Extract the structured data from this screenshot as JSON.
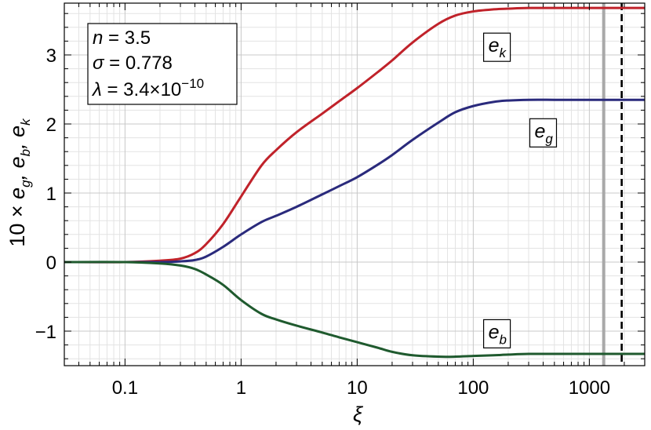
{
  "chart_data": {
    "type": "line",
    "xscale": "log",
    "xlabel": "ξ",
    "ylabel": "10 ×  e_g, e_b, e_k",
    "xlim": [
      0.03,
      3000
    ],
    "ylim": [
      -1.5,
      3.75
    ],
    "grid": true,
    "x_ticks": [
      {
        "value": 0.1,
        "label": "0.1"
      },
      {
        "value": 1,
        "label": "1"
      },
      {
        "value": 10,
        "label": "10"
      },
      {
        "value": 100,
        "label": "100"
      },
      {
        "value": 1000,
        "label": "1000"
      }
    ],
    "y_ticks": [
      {
        "value": -1,
        "label": "−1"
      },
      {
        "value": 0,
        "label": "0"
      },
      {
        "value": 1,
        "label": "1"
      },
      {
        "value": 2,
        "label": "2"
      },
      {
        "value": 3,
        "label": "3"
      }
    ],
    "parameters": [
      {
        "symbol": "n",
        "value": "3.5"
      },
      {
        "symbol": "σ",
        "value": "0.778"
      },
      {
        "symbol": "λ",
        "mantissa": "3.4",
        "exponent": "−10"
      }
    ],
    "vertical_lines": [
      {
        "x": 1330,
        "style": "solid",
        "color": "#a9a9a9"
      },
      {
        "x": 1900,
        "style": "dashed",
        "color": "#000000"
      }
    ],
    "series": [
      {
        "name": "e_k",
        "label_main": "e",
        "label_sub": "k",
        "label_at": {
          "x": 160,
          "y": 3.1
        },
        "color": "#c0222a",
        "x": [
          0.03,
          0.1,
          0.2,
          0.3,
          0.4,
          0.5,
          0.7,
          1,
          1.5,
          2,
          3,
          5,
          7,
          10,
          15,
          20,
          30,
          50,
          70,
          100,
          150,
          200,
          300,
          500,
          700,
          1000,
          2000,
          3000
        ],
        "y": [
          0,
          0,
          0.02,
          0.05,
          0.13,
          0.26,
          0.55,
          0.95,
          1.4,
          1.62,
          1.88,
          2.15,
          2.33,
          2.52,
          2.75,
          2.92,
          3.18,
          3.45,
          3.57,
          3.63,
          3.66,
          3.67,
          3.68,
          3.68,
          3.68,
          3.68,
          3.68,
          3.68
        ]
      },
      {
        "name": "e_g",
        "label_main": "e",
        "label_sub": "g",
        "label_at": {
          "x": 400,
          "y": 1.86
        },
        "color": "#2a2a7c",
        "x": [
          0.03,
          0.1,
          0.2,
          0.3,
          0.4,
          0.5,
          0.7,
          1,
          1.5,
          2,
          3,
          5,
          7,
          10,
          15,
          20,
          30,
          50,
          70,
          100,
          150,
          200,
          300,
          500,
          700,
          1000,
          2000,
          3000
        ],
        "y": [
          0,
          0,
          0,
          0.01,
          0.03,
          0.08,
          0.22,
          0.4,
          0.58,
          0.67,
          0.8,
          0.98,
          1.1,
          1.23,
          1.41,
          1.55,
          1.77,
          2.02,
          2.17,
          2.26,
          2.32,
          2.34,
          2.35,
          2.35,
          2.35,
          2.35,
          2.35,
          2.35
        ]
      },
      {
        "name": "e_b",
        "label_main": "e",
        "label_sub": "b",
        "label_at": {
          "x": 160,
          "y": -1.05
        },
        "color": "#1f5a2e",
        "x": [
          0.03,
          0.1,
          0.2,
          0.3,
          0.4,
          0.5,
          0.7,
          1,
          1.5,
          2,
          3,
          5,
          7,
          10,
          15,
          20,
          30,
          50,
          70,
          100,
          150,
          200,
          300,
          500,
          700,
          1000,
          2000,
          3000
        ],
        "y": [
          0,
          0,
          -0.02,
          -0.05,
          -0.1,
          -0.18,
          -0.33,
          -0.55,
          -0.75,
          -0.83,
          -0.92,
          -1.02,
          -1.09,
          -1.16,
          -1.24,
          -1.3,
          -1.35,
          -1.37,
          -1.37,
          -1.36,
          -1.35,
          -1.34,
          -1.33,
          -1.33,
          -1.33,
          -1.33,
          -1.33,
          -1.33
        ]
      }
    ]
  }
}
